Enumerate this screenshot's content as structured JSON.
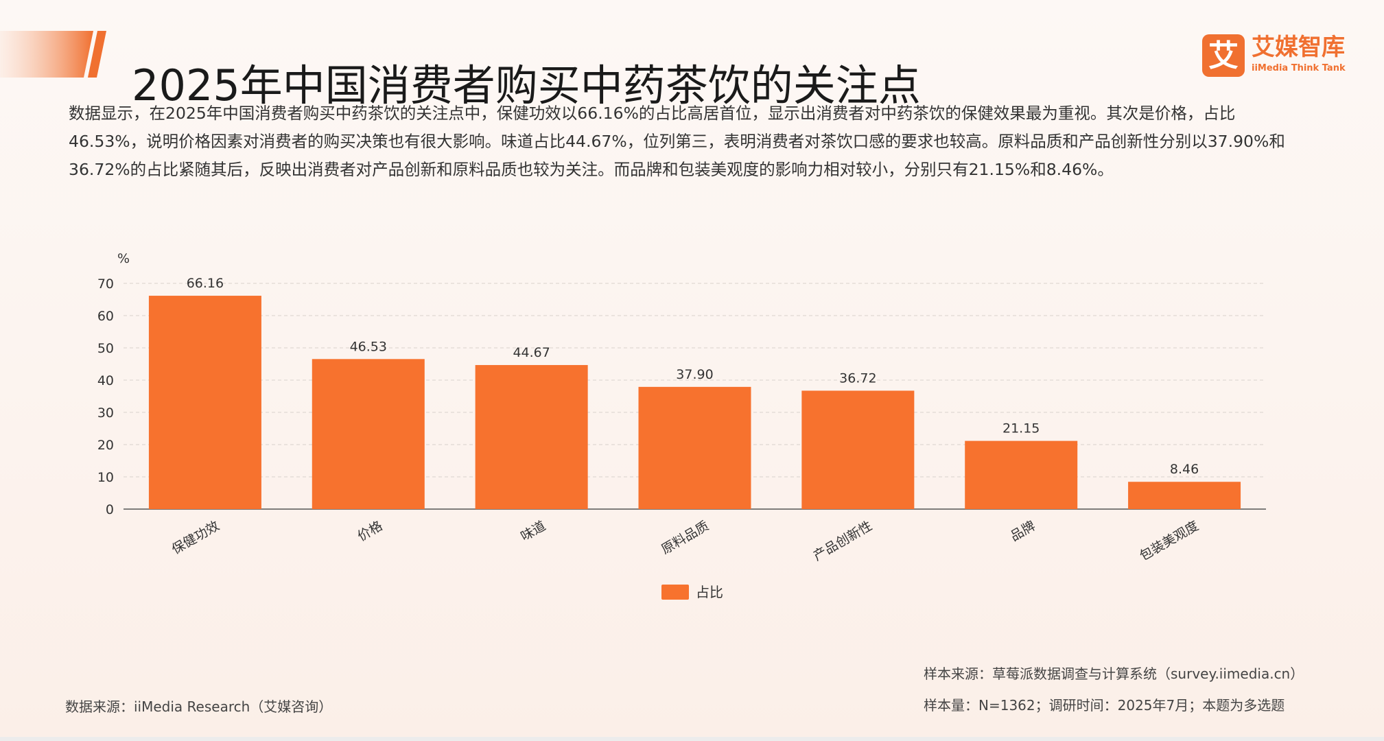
{
  "header": {
    "title": "2025年中国消费者购买中药茶饮的关注点",
    "logo_cn": "艾媒智库",
    "logo_en": "iiMedia Think Tank",
    "logo_glyph": "艾"
  },
  "description": "数据显示，在2025年中国消费者购买中药茶饮的关注点中，保健功效以66.16%的占比高居首位，显示出消费者对中药茶饮的保健效果最为重视。其次是价格，占比46.53%，说明价格因素对消费者的购买决策也有很大影响。味道占比44.67%，位列第三，表明消费者对茶饮口感的要求也较高。原料品质和产品创新性分别以37.90%和36.72%的占比紧随其后，反映出消费者对产品创新和原料品质也较为关注。而品牌和包装美观度的影响力相对较小，分别只有21.15%和8.46%。",
  "chart_data": {
    "type": "bar",
    "categories": [
      "保健功效",
      "价格",
      "味道",
      "原料品质",
      "产品创新性",
      "品牌",
      "包装美观度"
    ],
    "series": [
      {
        "name": "占比",
        "values": [
          66.16,
          46.53,
          44.67,
          37.9,
          36.72,
          21.15,
          8.46
        ]
      }
    ],
    "value_labels": [
      "66.16",
      "46.53",
      "44.67",
      "37.90",
      "36.72",
      "21.15",
      "8.46"
    ],
    "unit_label": "%",
    "yticks": [
      0,
      10,
      20,
      30,
      40,
      50,
      60,
      70
    ],
    "ylim": [
      0,
      70
    ],
    "grid": true,
    "legend_position": "bottom-center",
    "bar_color": "#f7722e"
  },
  "footer": {
    "data_source": "数据来源：iiMedia Research（艾媒咨询）",
    "sample_source": "样本来源：草莓派数据调查与计算系统（survey.iimedia.cn）",
    "sample_info": "样本量：N=1362；调研时间：2025年7月；本题为多选题"
  },
  "colors": {
    "accent": "#f07030",
    "bar": "#f7722e",
    "title": "#1a1a1a"
  }
}
